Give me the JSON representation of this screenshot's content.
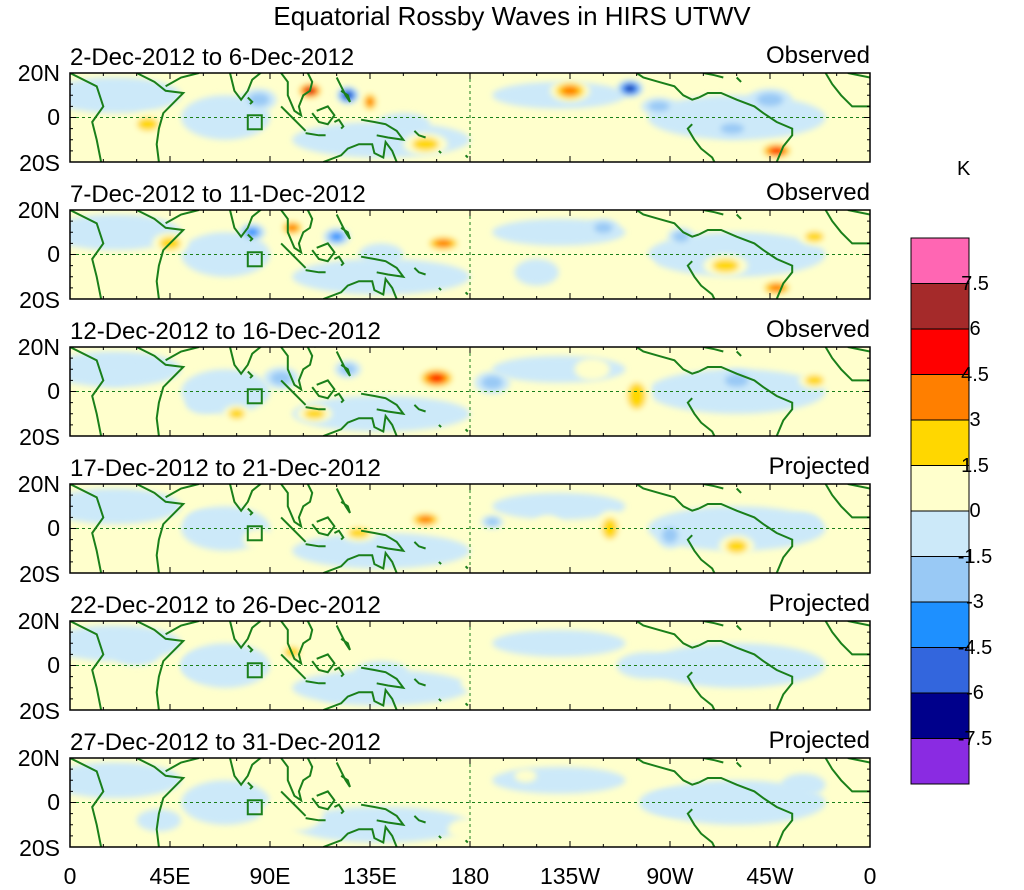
{
  "title": "Equatorial Rossby Waves in HIRS UTWV",
  "panels": [
    {
      "date": "2-Dec-2012 to 6-Dec-2012",
      "status": "Observed",
      "blobs": [
        [
          108,
          12,
          6,
          4,
          6.5
        ],
        [
          125,
          10,
          5,
          4,
          -7.5
        ],
        [
          135,
          7,
          4,
          5,
          3.5
        ],
        [
          160,
          -12,
          10,
          5,
          3
        ],
        [
          225,
          12,
          9,
          5,
          4
        ],
        [
          252,
          13,
          6,
          4,
          -7
        ],
        [
          265,
          5,
          8,
          4,
          -3
        ],
        [
          318,
          -15,
          8,
          4,
          5
        ],
        [
          298,
          -5,
          9,
          4,
          -3
        ],
        [
          35,
          -3,
          8,
          5,
          2
        ],
        [
          85,
          8,
          8,
          5,
          -2
        ],
        [
          200,
          -5,
          12,
          6,
          1.5
        ],
        [
          315,
          8,
          10,
          5,
          -2
        ],
        [
          150,
          -3,
          12,
          5,
          -1.5
        ]
      ]
    },
    {
      "date": "7-Dec-2012 to 11-Dec-2012",
      "status": "Observed",
      "blobs": [
        [
          100,
          12,
          6,
          4,
          4
        ],
        [
          82,
          10,
          6,
          4,
          -3.5
        ],
        [
          120,
          8,
          6,
          4,
          -4
        ],
        [
          168,
          5,
          9,
          4,
          4.5
        ],
        [
          240,
          12,
          7,
          4,
          -3
        ],
        [
          275,
          8,
          6,
          4,
          -3
        ],
        [
          318,
          -15,
          8,
          4,
          4
        ],
        [
          295,
          -5,
          10,
          5,
          2
        ],
        [
          335,
          8,
          7,
          4,
          3
        ],
        [
          45,
          5,
          8,
          5,
          2
        ],
        [
          140,
          0,
          10,
          5,
          -1.5
        ],
        [
          210,
          -8,
          10,
          6,
          -1.5
        ],
        [
          255,
          -5,
          8,
          4,
          1.5
        ]
      ]
    },
    {
      "date": "12-Dec-2012 to 16-Dec-2012",
      "status": "Observed",
      "blobs": [
        [
          165,
          6,
          9,
          5,
          5
        ],
        [
          125,
          10,
          6,
          4,
          -2
        ],
        [
          95,
          6,
          8,
          5,
          -2.5
        ],
        [
          110,
          -10,
          8,
          4,
          2
        ],
        [
          190,
          4,
          8,
          5,
          -2
        ],
        [
          255,
          -2,
          7,
          10,
          2
        ],
        [
          235,
          10,
          8,
          5,
          1.5
        ],
        [
          300,
          5,
          9,
          5,
          -2
        ],
        [
          335,
          5,
          7,
          4,
          2.5
        ],
        [
          20,
          8,
          8,
          5,
          -1.5
        ],
        [
          60,
          -5,
          8,
          5,
          -1.5
        ],
        [
          75,
          -10,
          6,
          4,
          2
        ]
      ]
    },
    {
      "date": "17-Dec-2012 to 21-Dec-2012",
      "status": "Projected",
      "blobs": [
        [
          160,
          4,
          8,
          4,
          3.5
        ],
        [
          130,
          -2,
          8,
          4,
          2
        ],
        [
          105,
          8,
          6,
          4,
          1.5
        ],
        [
          190,
          3,
          5,
          3,
          -2
        ],
        [
          215,
          -2,
          8,
          8,
          1.5
        ],
        [
          243,
          0,
          6,
          8,
          2
        ],
        [
          270,
          -3,
          6,
          6,
          -2
        ],
        [
          300,
          -8,
          8,
          5,
          2
        ],
        [
          330,
          2,
          8,
          5,
          -1.5
        ],
        [
          60,
          3,
          8,
          5,
          -1.5
        ],
        [
          85,
          -5,
          7,
          5,
          1.5
        ]
      ]
    },
    {
      "date": "22-Dec-2012 to 26-Dec-2012",
      "status": "Projected",
      "blobs": [
        [
          100,
          6,
          6,
          4,
          2
        ],
        [
          140,
          -3,
          12,
          5,
          -1
        ],
        [
          120,
          -12,
          8,
          4,
          -1.5
        ],
        [
          60,
          0,
          10,
          6,
          -1
        ],
        [
          30,
          5,
          10,
          5,
          -1
        ],
        [
          260,
          0,
          14,
          6,
          -1
        ],
        [
          190,
          -8,
          14,
          6,
          1
        ]
      ]
    },
    {
      "date": "27-Dec-2012 to 31-Dec-2012",
      "status": "Projected",
      "blobs": [
        [
          100,
          -5,
          14,
          8,
          1
        ],
        [
          180,
          -12,
          10,
          5,
          1
        ],
        [
          205,
          12,
          5,
          3,
          1.5
        ],
        [
          270,
          0,
          14,
          6,
          -1
        ],
        [
          40,
          -8,
          10,
          5,
          -1
        ],
        [
          330,
          8,
          10,
          5,
          -1
        ]
      ]
    }
  ],
  "y_labels": [
    "20N",
    "0",
    "20S"
  ],
  "x_labels": [
    "0",
    "45E",
    "90E",
    "135E",
    "180",
    "135W",
    "90W",
    "45W",
    "0"
  ],
  "colorbar": {
    "unit": "K",
    "levels": [
      "7.5",
      "6",
      "4.5",
      "3",
      "1.5",
      "0",
      "-1.5",
      "-3",
      "-4.5",
      "-6",
      "-7.5"
    ],
    "colors": [
      "#ff66b3",
      "#a52a2a",
      "#ff0000",
      "#ff7f00",
      "#ffd700",
      "#ffffcc",
      "#cce9f9",
      "#99c9f5",
      "#1e90ff",
      "#3366dd",
      "#00008b",
      "#8a2be2"
    ]
  },
  "colors": {
    "land": "#1a7f1a",
    "equator": "#1a7f1a"
  }
}
